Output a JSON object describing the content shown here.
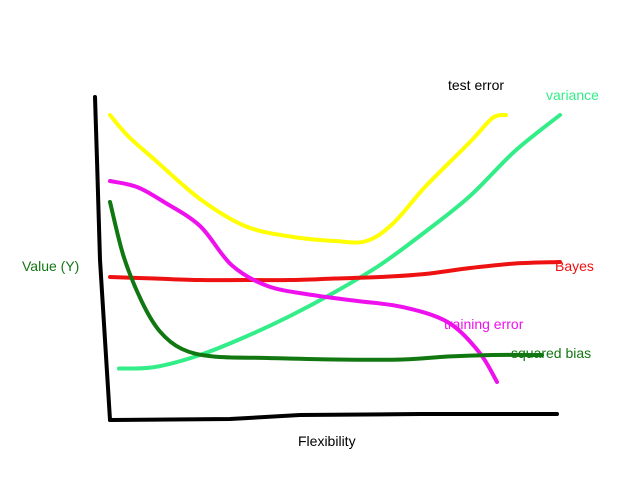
{
  "chart_data": {
    "type": "line",
    "title": "",
    "xlabel": "Flexibility",
    "ylabel": "Value (Y)",
    "xlim": [
      0,
      10
    ],
    "ylim": [
      0,
      10
    ],
    "grid": false,
    "legend": "none",
    "series": [
      {
        "name": "test error",
        "color": "#ffff00",
        "x": [
          0,
          0.4,
          1,
          2,
          3,
          4,
          5,
          5.7,
          6.3,
          7,
          8,
          8.5,
          8.8
        ],
        "y": [
          9.5,
          8.8,
          8.0,
          6.7,
          5.8,
          5.45,
          5.3,
          5.3,
          5.9,
          7.1,
          8.6,
          9.4,
          9.5
        ]
      },
      {
        "name": "variance",
        "color": "#33ee88",
        "x": [
          0.2,
          1,
          2,
          3,
          4,
          5,
          6,
          7,
          8,
          9,
          10
        ],
        "y": [
          1.05,
          1.1,
          1.5,
          2.1,
          2.8,
          3.6,
          4.5,
          5.6,
          6.8,
          8.3,
          9.5
        ]
      },
      {
        "name": "Bayes",
        "color": "#ee1111",
        "x": [
          0,
          1,
          2,
          3,
          4,
          5,
          6,
          7,
          8,
          9,
          10
        ],
        "y": [
          4.1,
          4.05,
          4.0,
          4.0,
          4.0,
          4.05,
          4.1,
          4.2,
          4.4,
          4.55,
          4.6
        ]
      },
      {
        "name": "training error",
        "color": "#ee11ee",
        "x": [
          0,
          0.6,
          1.2,
          2,
          2.7,
          3.5,
          4.5,
          5.5,
          6.5,
          7.5,
          8.2,
          8.6
        ],
        "y": [
          7.3,
          7.1,
          6.6,
          5.8,
          4.5,
          3.8,
          3.5,
          3.3,
          3.1,
          2.6,
          1.6,
          0.6
        ]
      },
      {
        "name": "squared bias",
        "color": "#117711",
        "x": [
          0,
          0.3,
          0.7,
          1.1,
          1.6,
          2.3,
          3.5,
          5,
          6.5,
          7.5,
          8.5,
          9.6
        ],
        "y": [
          6.6,
          4.8,
          3.3,
          2.3,
          1.7,
          1.45,
          1.4,
          1.35,
          1.35,
          1.45,
          1.5,
          1.5
        ]
      }
    ],
    "series_labels": [
      "test error",
      "variance",
      "Bayes",
      "training error",
      "squared bias"
    ]
  }
}
